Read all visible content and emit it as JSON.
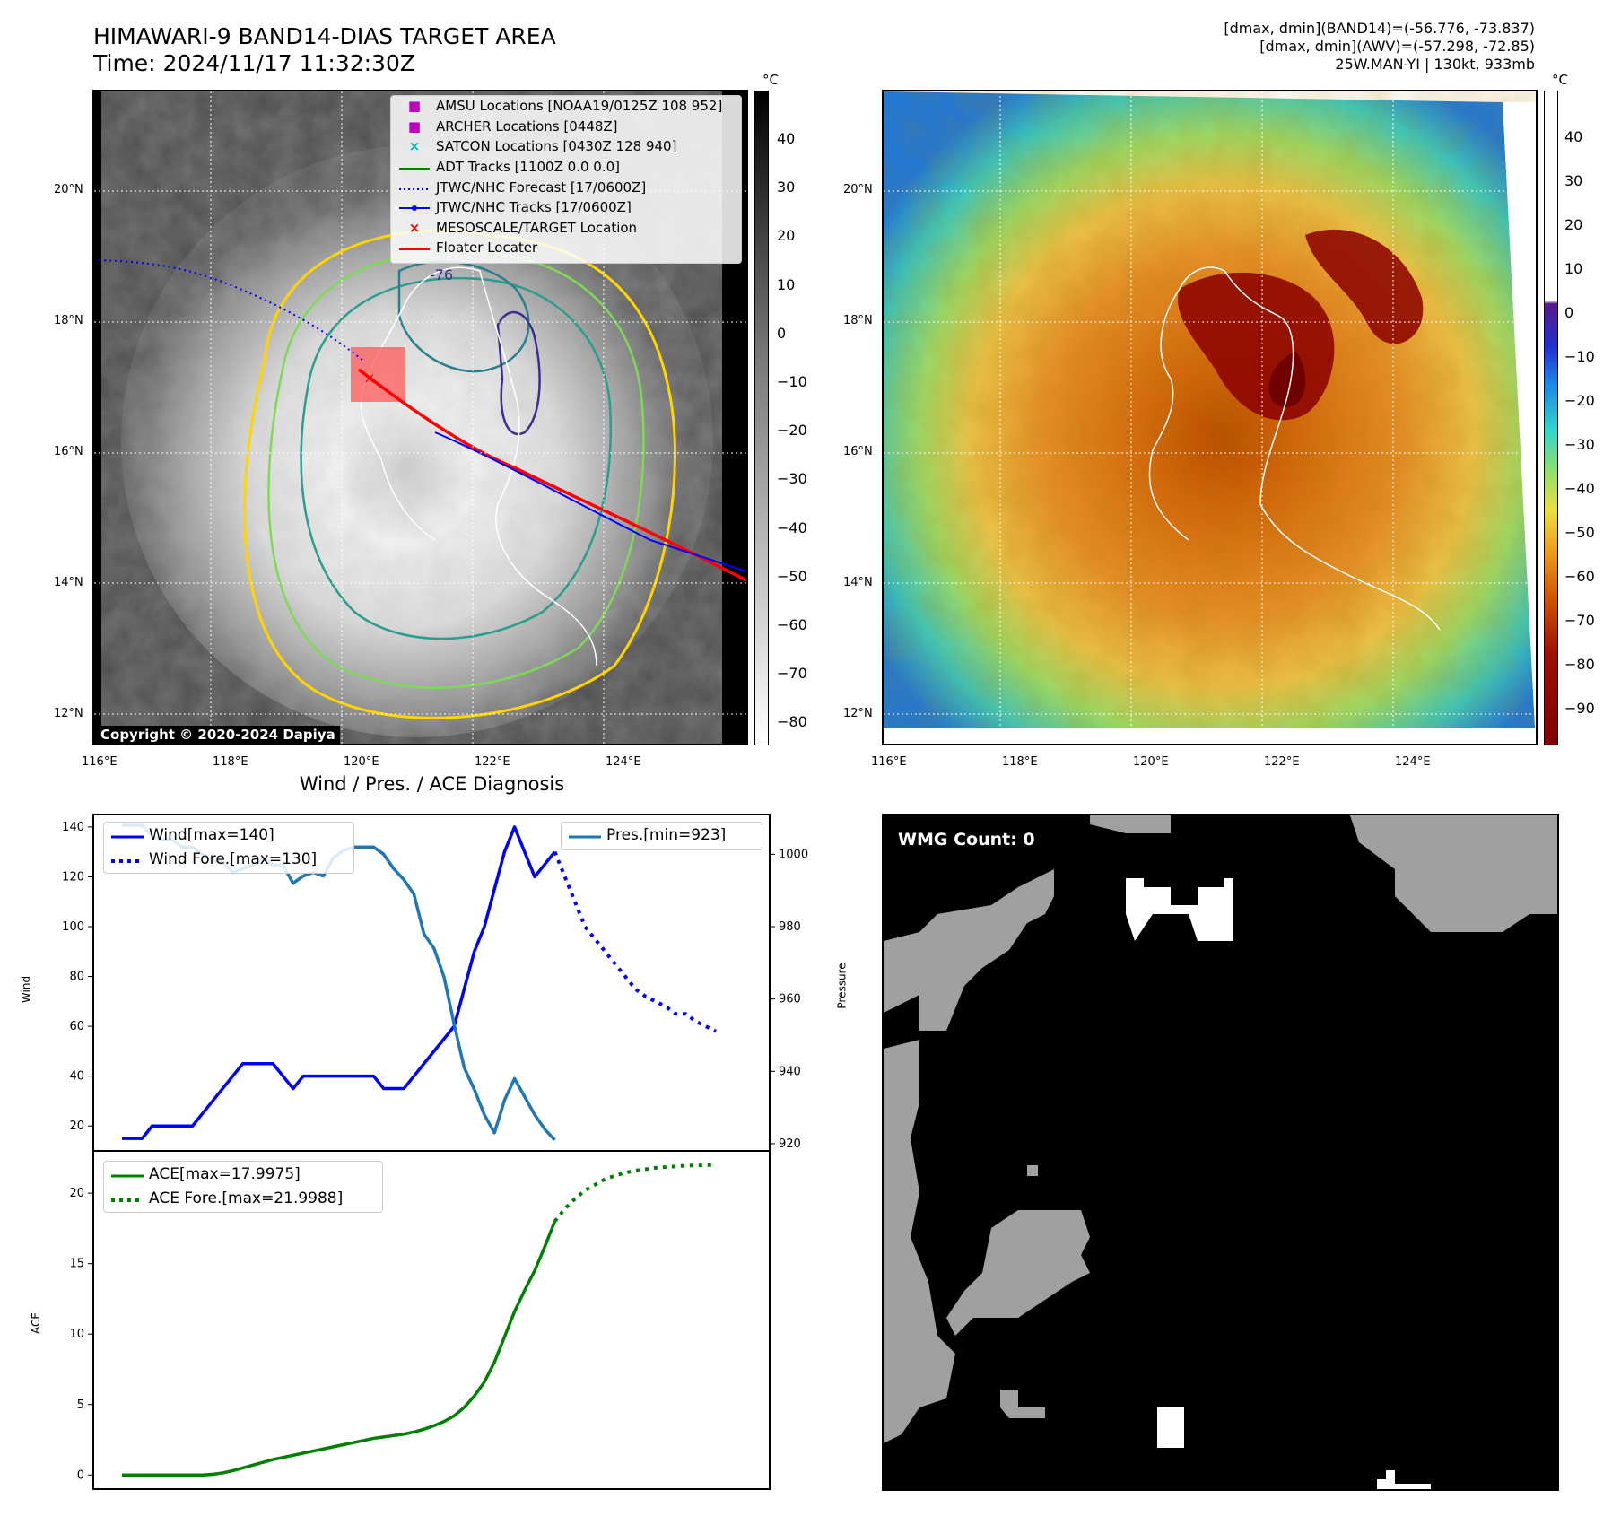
{
  "header": {
    "title_line1": "HIMAWARI-9 BAND14-DIAS TARGET AREA",
    "title_line2": "Time: 2024/11/17 11:32:30Z",
    "info_line1": "[dmax, dmin](BAND14)=(-56.776, -73.837)",
    "info_line2": "[dmax, dmin](AWV)=(-57.298, -72.85)",
    "info_line3": "25W.MAN-YI | 130kt, 933mb"
  },
  "map": {
    "lat_labels": [
      "20°N",
      "18°N",
      "16°N",
      "14°N",
      "12°N"
    ],
    "lon_labels": [
      "116°E",
      "118°E",
      "120°E",
      "122°E",
      "124°E"
    ],
    "copyright": "Copyright © 2020-2024 Dapiya",
    "contour_label": "-76",
    "legend": [
      {
        "label": "AMSU Locations [NOAA19/0125Z 108 952]",
        "symbol": "■",
        "color": "#c000c0"
      },
      {
        "label": "ARCHER Locations [0448Z]",
        "symbol": "■",
        "color": "#c000c0"
      },
      {
        "label": "SATCON Locations [0430Z 128 940]",
        "symbol": "×",
        "color": "#00b8b8"
      },
      {
        "label": "ADT Tracks [1100Z 0.0 0.0]",
        "symbol": "line",
        "color": "#008000"
      },
      {
        "label": "JTWC/NHC Forecast [17/0600Z]",
        "symbol": "dotted",
        "color": "#0000ff"
      },
      {
        "label": "JTWC/NHC Tracks [17/0600Z]",
        "symbol": "dotline",
        "color": "#0000ff"
      },
      {
        "label": "MESOSCALE/TARGET Location",
        "symbol": "×",
        "color": "#ff0000"
      },
      {
        "label": "Floater Locater",
        "symbol": "line",
        "color": "#ff0000"
      }
    ]
  },
  "colorbar_gray": {
    "unit": "°C",
    "ticks": [
      "40",
      "30",
      "20",
      "10",
      "0",
      "−10",
      "−20",
      "−30",
      "−40",
      "−50",
      "−60",
      "−70",
      "−80"
    ]
  },
  "colorbar_color": {
    "unit": "°C",
    "ticks": [
      "40",
      "30",
      "20",
      "10",
      "0",
      "−10",
      "−20",
      "−30",
      "−40",
      "−50",
      "−60",
      "−70",
      "−80",
      "−90"
    ]
  },
  "wmg": {
    "label": "WMG Count: 0"
  },
  "chart_data": [
    {
      "type": "line",
      "title": "Wind / Pres. / ACE Diagnosis",
      "ylabel": "Wind",
      "ylabel_right": "Pressure",
      "x": [
        0,
        1,
        2,
        3,
        4,
        5,
        6,
        7,
        8,
        9,
        10,
        11,
        12,
        13,
        14,
        15,
        16,
        17,
        18,
        19,
        20,
        21,
        22,
        23,
        24,
        25,
        26,
        27,
        28,
        29,
        30,
        31,
        32,
        33,
        34,
        35,
        36,
        37,
        38,
        39,
        40,
        41,
        42,
        43,
        44,
        45,
        46,
        47,
        48,
        49,
        50,
        51,
        52,
        53,
        54,
        55,
        56,
        57,
        58,
        59
      ],
      "ylim": [
        10,
        145
      ],
      "yticks": [
        "20",
        "40",
        "60",
        "80",
        "100",
        "120",
        "140"
      ],
      "ylim_right": [
        918,
        1011
      ],
      "yticks_right": [
        "920",
        "940",
        "960",
        "980",
        "1000"
      ],
      "series": [
        {
          "name": "Wind[max=140]",
          "color": "#0000ff",
          "style": "solid",
          "x": [
            0,
            2,
            3,
            7,
            8,
            9,
            10,
            11,
            12,
            13,
            14,
            15,
            16,
            17,
            18,
            19,
            20,
            21,
            22,
            23,
            24,
            25,
            26,
            27,
            28,
            29,
            30,
            31,
            32,
            33,
            34,
            35,
            36,
            37,
            38,
            39,
            40,
            41,
            42,
            43
          ],
          "values": [
            15,
            15,
            20,
            20,
            25,
            30,
            35,
            40,
            45,
            45,
            45,
            45,
            40,
            35,
            40,
            40,
            40,
            40,
            40,
            40,
            40,
            40,
            35,
            35,
            35,
            40,
            45,
            50,
            55,
            60,
            75,
            90,
            100,
            115,
            130,
            140,
            130,
            120,
            125,
            130
          ]
        },
        {
          "name": "Wind Fore.[max=130]",
          "color": "#0000ff",
          "style": "dotted",
          "x": [
            43,
            44,
            45,
            46,
            47,
            48,
            49,
            50,
            51,
            52,
            53,
            54,
            55,
            56,
            57,
            58,
            59
          ],
          "values": [
            130,
            120,
            110,
            100,
            95,
            90,
            85,
            80,
            75,
            72,
            70,
            68,
            65,
            65,
            62,
            60,
            58
          ]
        },
        {
          "name": "Pres.[min=923]",
          "color": "#1f77b4",
          "style": "solid",
          "axis": "right",
          "x": [
            0,
            2,
            3,
            4,
            5,
            6,
            7,
            8,
            9,
            10,
            11,
            12,
            13,
            14,
            15,
            16,
            17,
            18,
            19,
            20,
            21,
            22,
            23,
            24,
            25,
            26,
            27,
            28,
            29,
            30,
            31,
            32,
            33,
            34,
            35,
            36,
            37,
            38,
            39,
            40,
            41,
            42,
            43
          ],
          "values": [
            1008,
            1008,
            1005,
            1004,
            1004,
            1002,
            1002,
            1000,
            998,
            998,
            995,
            996,
            997,
            999,
            997,
            997,
            992,
            994,
            995,
            994,
            999,
            1001,
            1002,
            1002,
            1002,
            1000,
            996,
            993,
            989,
            978,
            974,
            966,
            953,
            941,
            935,
            928,
            923,
            932,
            938,
            933,
            928,
            924,
            921
          ]
        }
      ]
    },
    {
      "type": "line",
      "ylabel": "ACE",
      "x": [
        0,
        1,
        2,
        3,
        4,
        5,
        6,
        7,
        8,
        9,
        10,
        11,
        12,
        13,
        14,
        15,
        16,
        17,
        18,
        19,
        20,
        21,
        22,
        23,
        24,
        25,
        26,
        27,
        28,
        29,
        30,
        31,
        32,
        33,
        34,
        35,
        36,
        37,
        38,
        39,
        40,
        41,
        42,
        43,
        44,
        45,
        46,
        47,
        48,
        49,
        50,
        51,
        52,
        53,
        54,
        55,
        56,
        57,
        58,
        59
      ],
      "ylim": [
        -1,
        23
      ],
      "yticks": [
        "0",
        "5",
        "10",
        "15",
        "20"
      ],
      "series": [
        {
          "name": "ACE[max=17.9975]",
          "color": "#008000",
          "style": "solid",
          "x": [
            0,
            4,
            8,
            9,
            10,
            11,
            12,
            13,
            14,
            15,
            16,
            17,
            18,
            19,
            20,
            21,
            22,
            23,
            24,
            25,
            26,
            27,
            28,
            29,
            30,
            31,
            32,
            33,
            34,
            35,
            36,
            37,
            38,
            39,
            40,
            41,
            42,
            43
          ],
          "values": [
            0,
            0,
            0,
            0.05,
            0.15,
            0.3,
            0.5,
            0.7,
            0.9,
            1.1,
            1.25,
            1.4,
            1.55,
            1.7,
            1.85,
            2.0,
            2.15,
            2.3,
            2.45,
            2.6,
            2.7,
            2.8,
            2.9,
            3.05,
            3.25,
            3.5,
            3.8,
            4.2,
            4.8,
            5.6,
            6.6,
            8.0,
            9.8,
            11.6,
            13.1,
            14.5,
            16.2,
            18.0
          ]
        },
        {
          "name": "ACE Fore.[max=21.9988]",
          "color": "#008000",
          "style": "dotted",
          "x": [
            43,
            44,
            45,
            46,
            47,
            48,
            49,
            50,
            51,
            52,
            53,
            54,
            55,
            56,
            57,
            58,
            59
          ],
          "values": [
            18.0,
            18.9,
            19.6,
            20.2,
            20.6,
            21.0,
            21.25,
            21.45,
            21.6,
            21.7,
            21.8,
            21.85,
            21.9,
            21.95,
            21.97,
            21.99,
            22.0
          ]
        }
      ]
    }
  ]
}
